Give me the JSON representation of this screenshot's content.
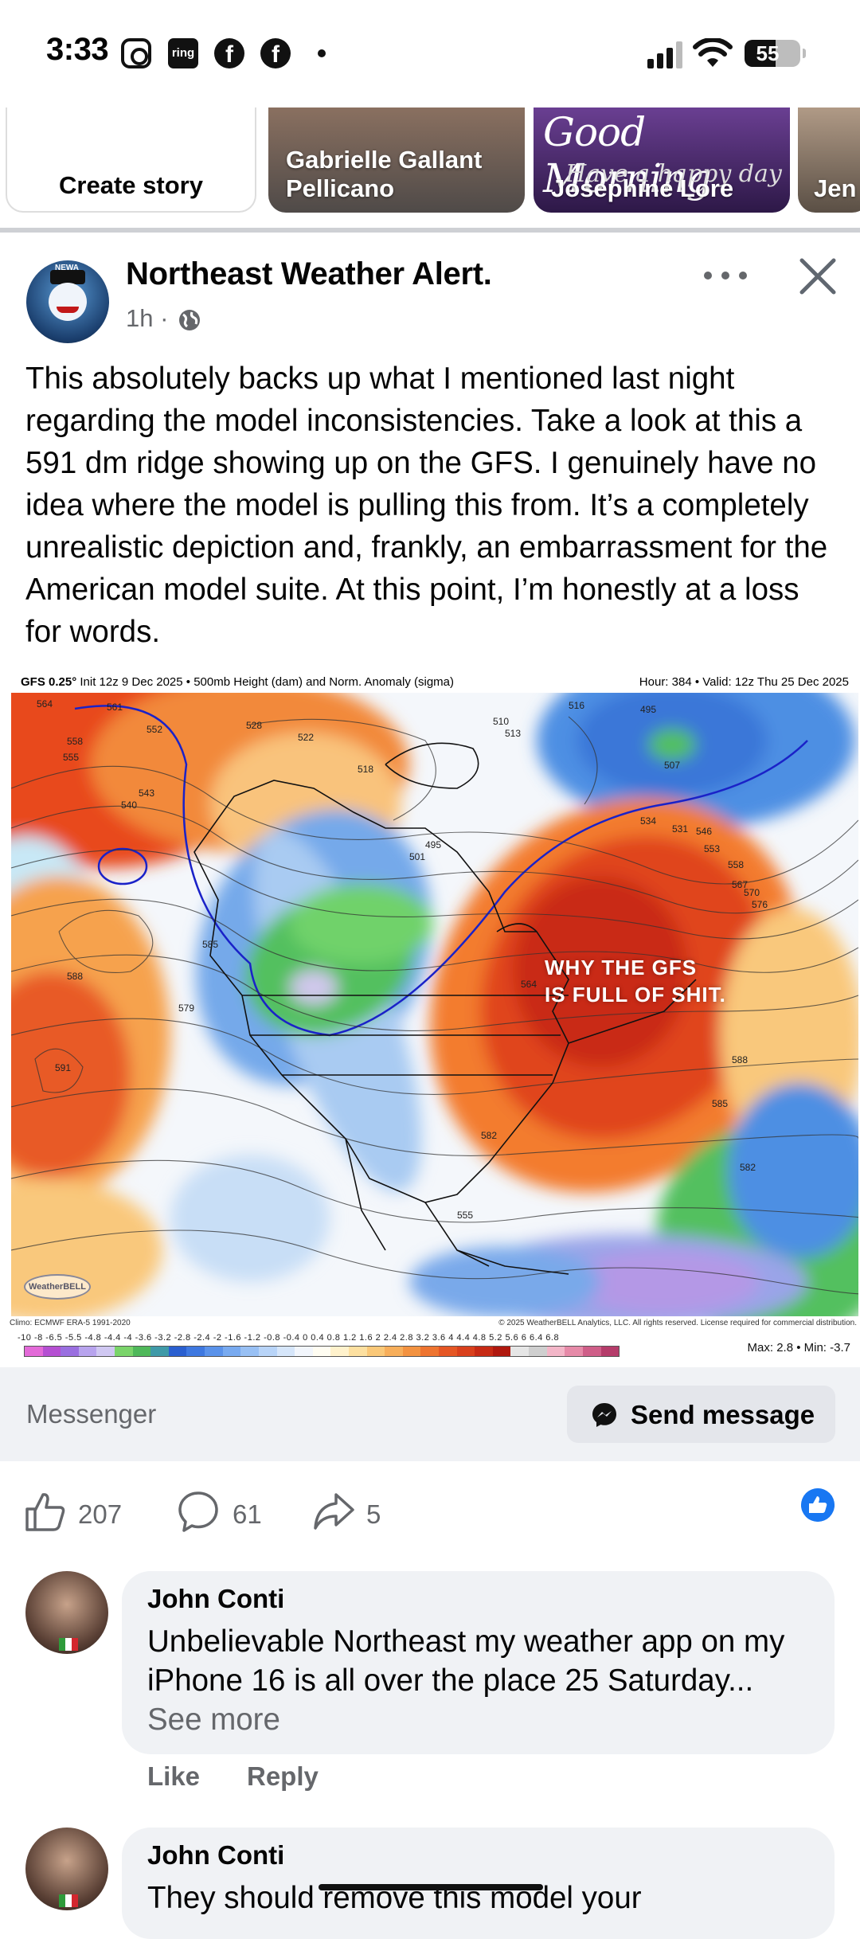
{
  "status_bar": {
    "time": "3:33",
    "battery": "55",
    "battery_level_percent": 55,
    "app_icons": [
      "instagram-icon",
      "ring-icon",
      "facebook-icon",
      "facebook-icon",
      "dot-icon"
    ],
    "ring_label": "ring",
    "fb_glyph": "f"
  },
  "stories": {
    "create_label": "Create story",
    "items": [
      {
        "name": "Gabrielle Gallant Pellicano"
      },
      {
        "name": "Josephine Lore",
        "overlay_text": "Good Morning",
        "overlay_sub": "Have a happy day"
      },
      {
        "name": "Jen"
      }
    ]
  },
  "post": {
    "page_name": "Northeast Weather Alert.",
    "time": "1h · ",
    "avatar_tag": "NEWA",
    "text": "This absolutely backs up what I mentioned last night regarding the model inconsistencies. Take a look at this a 591 dm ridge showing up on the GFS. I genuinely have no idea where the model is pulling this from. It’s a completely unrealistic depiction and, frankly, an embarrassment for the American model suite. At this point, I’m honestly at a loss for words.",
    "map": {
      "header_model": "GFS 0.25°",
      "header_rest": " Init 12z 9 Dec 2025 • 500mb Height (dam) and Norm. Anomaly (sigma)",
      "header_right": "Hour: 384 • Valid: 12z Thu 25 Dec 2025",
      "overlay_line1": "WHY THE GFS",
      "overlay_line2": "IS FULL OF SHIT.",
      "clim": "Climo: ECMWF ERA-5 1991-2020",
      "copyright": "© 2025 WeatherBELL Analytics, LLC. All rights reserved. License required for commercial distribution.",
      "scale_ticks": "-10  -8  -6.5 -5.5 -4.8 -4.4  -4  -3.6 -3.2 -2.8 -2.4  -2  -1.6 -1.2 -0.8 -0.4  0  0.4  0.8  1.2  1.6  2  2.4  2.8  3.2  3.6  4  4.4  4.8  5.2  5.6  6  6.4  6.8",
      "max_min": "Max: 2.8 • Min: -3.7",
      "logo": "WeatherBELL",
      "contour_labels": [
        "564",
        "561",
        "552",
        "558",
        "555",
        "543",
        "540",
        "528",
        "522",
        "518",
        "513",
        "510",
        "516",
        "495",
        "507",
        "501",
        "495",
        "534",
        "531",
        "546",
        "553",
        "558",
        "567",
        "570",
        "576",
        "585",
        "579",
        "588",
        "591",
        "588",
        "585",
        "582",
        "564",
        "582",
        "555"
      ]
    }
  },
  "messenger": {
    "label": "Messenger",
    "send_label": "Send message"
  },
  "reactions": {
    "likes": "207",
    "comments": "61",
    "shares": "5"
  },
  "comments": [
    {
      "name": "John Conti",
      "text": "Unbelievable Northeast my weather app on my iPhone 16 is all over the place  25 Saturday... ",
      "see_more": "See more",
      "like_label": "Like",
      "reply_label": "Reply"
    },
    {
      "name": "John Conti",
      "text": "They should remove this model your"
    }
  ],
  "colors": {
    "facebook_blue": "#1877f2",
    "secondary_text": "#65676b",
    "bubble_bg": "#f0f2f5"
  }
}
